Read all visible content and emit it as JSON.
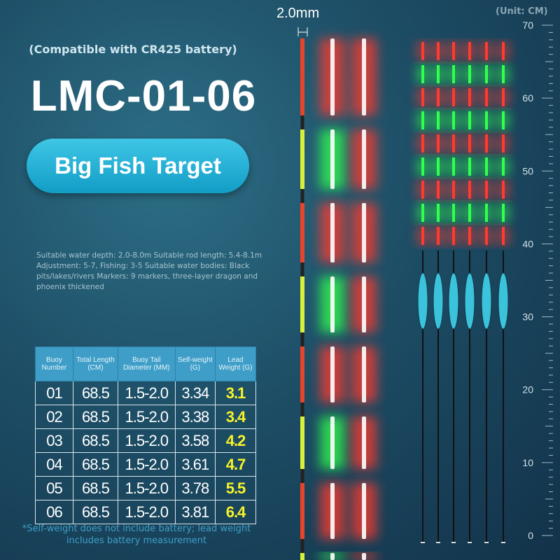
{
  "header": {
    "compat": "(Compatible with CR425 battery)",
    "model": "LMC-01-06",
    "badge": "Big Fish Target"
  },
  "description": "Suitable water depth: 2.0-8.0m Suitable rod length: 5.4-8.1m Adjustment: 5-7, Fishing: 3-5 Suitable water bodies: Black pits/lakes/rivers Markers: 9 markers, three-layer dragon and phoenix thickened",
  "diameter_label": "2.0mm",
  "unit": "(Unit: CM)",
  "scale": [
    "70",
    "60",
    "50",
    "40",
    "30",
    "20",
    "10",
    "0"
  ],
  "table": {
    "headers": [
      "Buoy Number",
      "Total Length (CM)",
      "Buoy Tail Diameter (MM)",
      "Self-weight (G)",
      "Lead Weight (G)"
    ],
    "rows": [
      [
        "01",
        "68.5",
        "1.5-2.0",
        "3.34",
        "3.1"
      ],
      [
        "02",
        "68.5",
        "1.5-2.0",
        "3.38",
        "3.4"
      ],
      [
        "03",
        "68.5",
        "1.5-2.0",
        "3.58",
        "4.2"
      ],
      [
        "04",
        "68.5",
        "1.5-2.0",
        "3.61",
        "4.7"
      ],
      [
        "05",
        "68.5",
        "1.5-2.0",
        "3.78",
        "5.5"
      ],
      [
        "06",
        "68.5",
        "1.5-2.0",
        "3.81",
        "6.4"
      ]
    ]
  },
  "footnote": "*Self-weight does not include battery; lead weight includes battery measurement"
}
